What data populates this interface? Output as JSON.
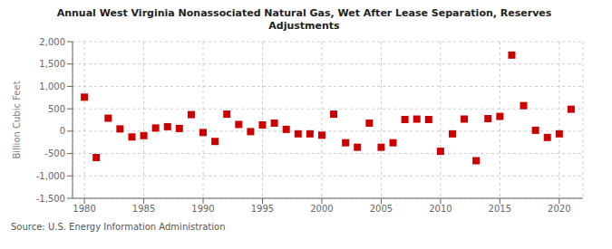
{
  "chart_data": {
    "type": "scatter",
    "title": "Annual West Virginia Nonassociated Natural Gas, Wet After Lease Separation, Reserves\nAdjustments",
    "ylabel": "Billion Cubic Feet",
    "annotations": [
      "Source: U.S. Energy Information Administration"
    ],
    "x": [
      1980,
      1981,
      1982,
      1983,
      1984,
      1985,
      1986,
      1987,
      1988,
      1989,
      1990,
      1991,
      1992,
      1993,
      1994,
      1995,
      1996,
      1997,
      1998,
      1999,
      2000,
      2001,
      2002,
      2003,
      2004,
      2005,
      2006,
      2007,
      2008,
      2009,
      2010,
      2011,
      2012,
      2013,
      2014,
      2015,
      2016,
      2017,
      2018,
      2019,
      2020,
      2021
    ],
    "values": [
      760,
      -590,
      290,
      50,
      -130,
      -100,
      70,
      100,
      60,
      370,
      -30,
      -230,
      380,
      150,
      -10,
      140,
      180,
      40,
      -60,
      -60,
      -90,
      380,
      -260,
      -360,
      180,
      -360,
      -260,
      260,
      270,
      260,
      -450,
      -60,
      270,
      -660,
      280,
      330,
      1700,
      570,
      20,
      -140,
      -60,
      490
    ],
    "color": "#cc0000",
    "marker": "square",
    "xlim": [
      1979,
      2022
    ],
    "ylim": [
      -1500,
      2000
    ],
    "xticks": [
      1980,
      1985,
      1990,
      1995,
      2000,
      2005,
      2010,
      2015,
      2020
    ],
    "yticks": [
      {
        "value": -1500,
        "label": "-1,500"
      },
      {
        "value": -1000,
        "label": "-1,000"
      },
      -500,
      0,
      500,
      {
        "value": 1000,
        "label": "1,000"
      },
      {
        "value": 1500,
        "label": "1,500"
      },
      {
        "value": 2000,
        "label": "2,000"
      }
    ],
    "grid": true
  }
}
